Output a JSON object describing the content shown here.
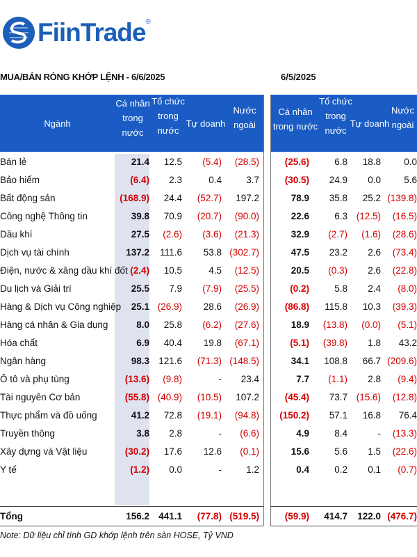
{
  "brand": {
    "name": "FiinTrade",
    "reg": "®"
  },
  "left_title": "MUA/BÁN RÒNG KHỚP LỆNH - 6/6/2025",
  "right_title": "6/5/2025",
  "headers": {
    "sector": "Ngành",
    "individual": [
      "Cá nhân",
      "trong",
      "nước"
    ],
    "institution": [
      "Tổ chức",
      "trong",
      "nước"
    ],
    "proprietary": "Tự doanh",
    "foreign": [
      "Nước",
      "ngoài"
    ],
    "individual_right": [
      "Cá nhân",
      "trong nước"
    ],
    "institution_right": [
      "Tổ chức",
      "trong",
      "nước"
    ],
    "proprietary_right": "Tự doanh",
    "foreign_right": [
      "Nước",
      "ngoài"
    ]
  },
  "rows": [
    {
      "sector": "Bán lẻ",
      "l": [
        "21.4",
        "12.5",
        "(5.4)",
        "(28.5)"
      ],
      "r": [
        "(25.6)",
        "6.8",
        "18.8",
        "0.0"
      ]
    },
    {
      "sector": "Bảo hiểm",
      "l": [
        "(6.4)",
        "2.3",
        "0.4",
        "3.7"
      ],
      "r": [
        "(30.5)",
        "24.9",
        "0.0",
        "5.6"
      ]
    },
    {
      "sector": "Bất động sản",
      "l": [
        "(168.9)",
        "24.4",
        "(52.7)",
        "197.2"
      ],
      "r": [
        "78.9",
        "35.8",
        "25.2",
        "(139.8)"
      ]
    },
    {
      "sector": "Công nghệ Thông tin",
      "l": [
        "39.8",
        "70.9",
        "(20.7)",
        "(90.0)"
      ],
      "r": [
        "22.6",
        "6.3",
        "(12.5)",
        "(16.5)"
      ]
    },
    {
      "sector": "Dầu khí",
      "l": [
        "27.5",
        "(2.6)",
        "(3.6)",
        "(21.3)"
      ],
      "r": [
        "32.9",
        "(2.7)",
        "(1.6)",
        "(28.6)"
      ]
    },
    {
      "sector": "Dịch vụ tài chính",
      "l": [
        "137.2",
        "111.6",
        "53.8",
        "(302.7)"
      ],
      "r": [
        "47.5",
        "23.2",
        "2.6",
        "(73.4)"
      ]
    },
    {
      "sector": "Điện, nước & xăng dầu khí đốt",
      "l": [
        "(2.4)",
        "10.5",
        "4.5",
        "(12.5)"
      ],
      "r": [
        "20.5",
        "(0.3)",
        "2.6",
        "(22.8)"
      ]
    },
    {
      "sector": "Du lịch và Giải trí",
      "l": [
        "25.5",
        "7.9",
        "(7.9)",
        "(25.5)"
      ],
      "r": [
        "(0.2)",
        "5.8",
        "2.4",
        "(8.0)"
      ]
    },
    {
      "sector": "Hàng & Dịch vụ Công nghiệp",
      "l": [
        "25.1",
        "(26.9)",
        "28.6",
        "(26.9)"
      ],
      "r": [
        "(86.8)",
        "115.8",
        "10.3",
        "(39.3)"
      ]
    },
    {
      "sector": "Hàng cá nhân & Gia dụng",
      "l": [
        "8.0",
        "25.8",
        "(6.2)",
        "(27.6)"
      ],
      "r": [
        "18.9",
        "(13.8)",
        "(0.0)",
        "(5.1)"
      ]
    },
    {
      "sector": "Hóa chất",
      "l": [
        "6.9",
        "40.4",
        "19.8",
        "(67.1)"
      ],
      "r": [
        "(5.1)",
        "(39.8)",
        "1.8",
        "43.2"
      ]
    },
    {
      "sector": "Ngân hàng",
      "l": [
        "98.3",
        "121.6",
        "(71.3)",
        "(148.5)"
      ],
      "r": [
        "34.1",
        "108.8",
        "66.7",
        "(209.6)"
      ]
    },
    {
      "sector": "Ô tô và phụ tùng",
      "l": [
        "(13.6)",
        "(9.8)",
        "-",
        "23.4"
      ],
      "r": [
        "7.7",
        "(1.1)",
        "2.8",
        "(9.4)"
      ]
    },
    {
      "sector": "Tài nguyên Cơ bản",
      "l": [
        "(55.8)",
        "(40.9)",
        "(10.5)",
        "107.2"
      ],
      "r": [
        "(45.4)",
        "73.7",
        "(15.6)",
        "(12.8)"
      ]
    },
    {
      "sector": "Thực phẩm và đồ uống",
      "l": [
        "41.2",
        "72.8",
        "(19.1)",
        "(94.8)"
      ],
      "r": [
        "(150.2)",
        "57.1",
        "16.8",
        "76.4"
      ]
    },
    {
      "sector": "Truyền thông",
      "l": [
        "3.8",
        "2.8",
        "-",
        "(6.6)"
      ],
      "r": [
        "4.9",
        "8.4",
        "-",
        "(13.3)"
      ]
    },
    {
      "sector": "Xây dựng và Vật liệu",
      "l": [
        "(30.2)",
        "17.6",
        "12.6",
        "(0.1)"
      ],
      "r": [
        "15.6",
        "5.6",
        "1.5",
        "(22.6)"
      ]
    },
    {
      "sector": "Y tế",
      "l": [
        "(1.2)",
        "0.0",
        "-",
        "1.2"
      ],
      "r": [
        "0.4",
        "0.2",
        "0.1",
        "(0.7)"
      ]
    }
  ],
  "total": {
    "label": "Tổng",
    "l": [
      "156.2",
      "441.1",
      "(77.8)",
      "(519.5)"
    ],
    "r": [
      "(59.9)",
      "414.7",
      "122.0",
      "(476.7)"
    ]
  },
  "note": "Note: Dữ liệu chỉ tính GD khớp lệnh trên sàn HOSE, Tỷ VND",
  "colors": {
    "header_bg": "#1a5cc4",
    "negative": "#d40000",
    "shade": "#dfe3f0",
    "brand": "#1b5fb8"
  }
}
